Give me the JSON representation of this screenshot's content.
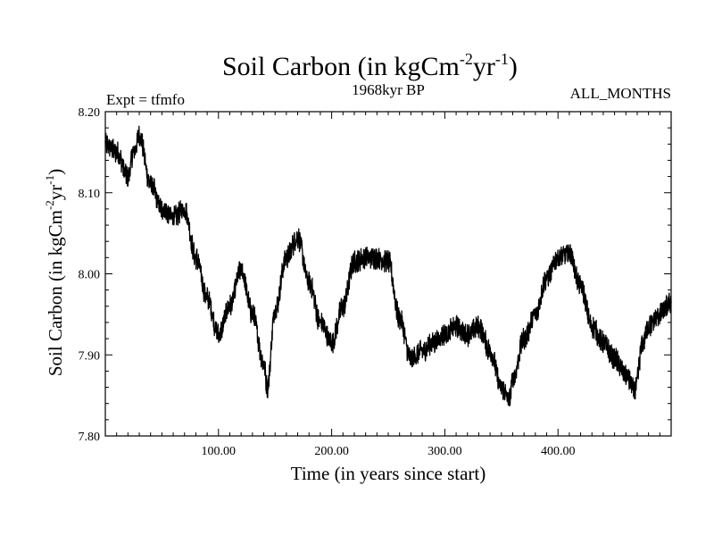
{
  "chart_data": {
    "type": "line",
    "title": "Soil Carbon (in kgCm",
    "title_units_sup1": "-2",
    "title_units_mid": "yr",
    "title_units_sup2": "-1",
    "title_units_close": ")",
    "subtitle_left": "Expt = tfmfo",
    "subtitle_center": "1968kyr BP",
    "subtitle_right": "ALL_MONTHS",
    "xlabel": "Time (in years since start)",
    "ylabel": "Soil Carbon (in kgCm",
    "ylabel_sup1": "-2",
    "ylabel_mid": "yr",
    "ylabel_sup2": "-1",
    "ylabel_close": ")",
    "xlim": [
      0,
      500
    ],
    "ylim": [
      7.8,
      8.2
    ],
    "x_ticks": [
      100,
      200,
      300,
      400
    ],
    "x_tick_labels": [
      "100.00",
      "200.00",
      "300.00",
      "400.00"
    ],
    "y_ticks": [
      7.8,
      7.9,
      8.0,
      8.1,
      8.2
    ],
    "y_tick_labels": [
      "7.80",
      "7.90",
      "8.00",
      "8.10",
      "8.20"
    ],
    "series": [
      {
        "name": "Soil Carbon",
        "color": "#000000",
        "x": [
          0,
          10,
          20,
          25,
          30,
          40,
          50,
          60,
          70,
          80,
          90,
          100,
          110,
          120,
          130,
          140,
          143,
          150,
          160,
          170,
          180,
          190,
          200,
          210,
          220,
          230,
          240,
          250,
          260,
          270,
          280,
          290,
          300,
          310,
          320,
          330,
          340,
          350,
          357,
          360,
          370,
          380,
          390,
          400,
          410,
          420,
          430,
          440,
          450,
          460,
          468,
          475,
          480,
          490,
          500
        ],
        "values": [
          8.16,
          8.15,
          8.12,
          8.15,
          8.17,
          8.11,
          8.08,
          8.07,
          8.08,
          8.02,
          7.97,
          7.925,
          7.96,
          8.005,
          7.95,
          7.89,
          7.86,
          7.955,
          8.02,
          8.045,
          7.99,
          7.94,
          7.915,
          7.96,
          8.015,
          8.02,
          8.02,
          8.015,
          7.945,
          7.895,
          7.905,
          7.915,
          7.925,
          7.935,
          7.925,
          7.935,
          7.905,
          7.86,
          7.845,
          7.87,
          7.92,
          7.95,
          7.995,
          8.02,
          8.025,
          7.985,
          7.935,
          7.915,
          7.895,
          7.875,
          7.855,
          7.915,
          7.935,
          7.95,
          7.965
        ]
      }
    ]
  }
}
